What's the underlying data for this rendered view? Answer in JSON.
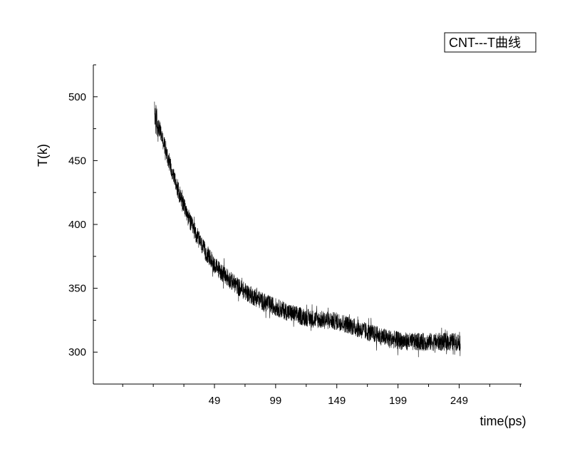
{
  "chart_data": {
    "type": "line",
    "title": "",
    "xlabel": "time(ps)",
    "ylabel": "T(k)",
    "xlim": [
      -50,
      300
    ],
    "ylim": [
      275,
      525
    ],
    "x_ticks": [
      49,
      99,
      149,
      199,
      249
    ],
    "y_ticks": [
      300,
      350,
      400,
      450,
      500
    ],
    "grid": false,
    "legend": {
      "placement": "top-right",
      "entries": [
        "CNT---T曲线"
      ]
    },
    "series": [
      {
        "name": "CNT---T曲线",
        "color": "#000000",
        "noise_amplitude": 7,
        "x": [
          0,
          5,
          10,
          15,
          20,
          25,
          30,
          40,
          50,
          60,
          70,
          80,
          90,
          100,
          110,
          120,
          130,
          140,
          150,
          160,
          170,
          180,
          190,
          200,
          210,
          220,
          230,
          240,
          250
        ],
        "values": [
          485,
          472,
          456,
          440,
          425,
          412,
          400,
          381,
          367,
          358,
          350,
          344,
          339,
          335,
          331,
          328,
          326,
          325,
          324,
          321,
          317,
          314,
          311,
          309,
          308,
          308,
          308,
          308,
          308
        ]
      }
    ]
  }
}
